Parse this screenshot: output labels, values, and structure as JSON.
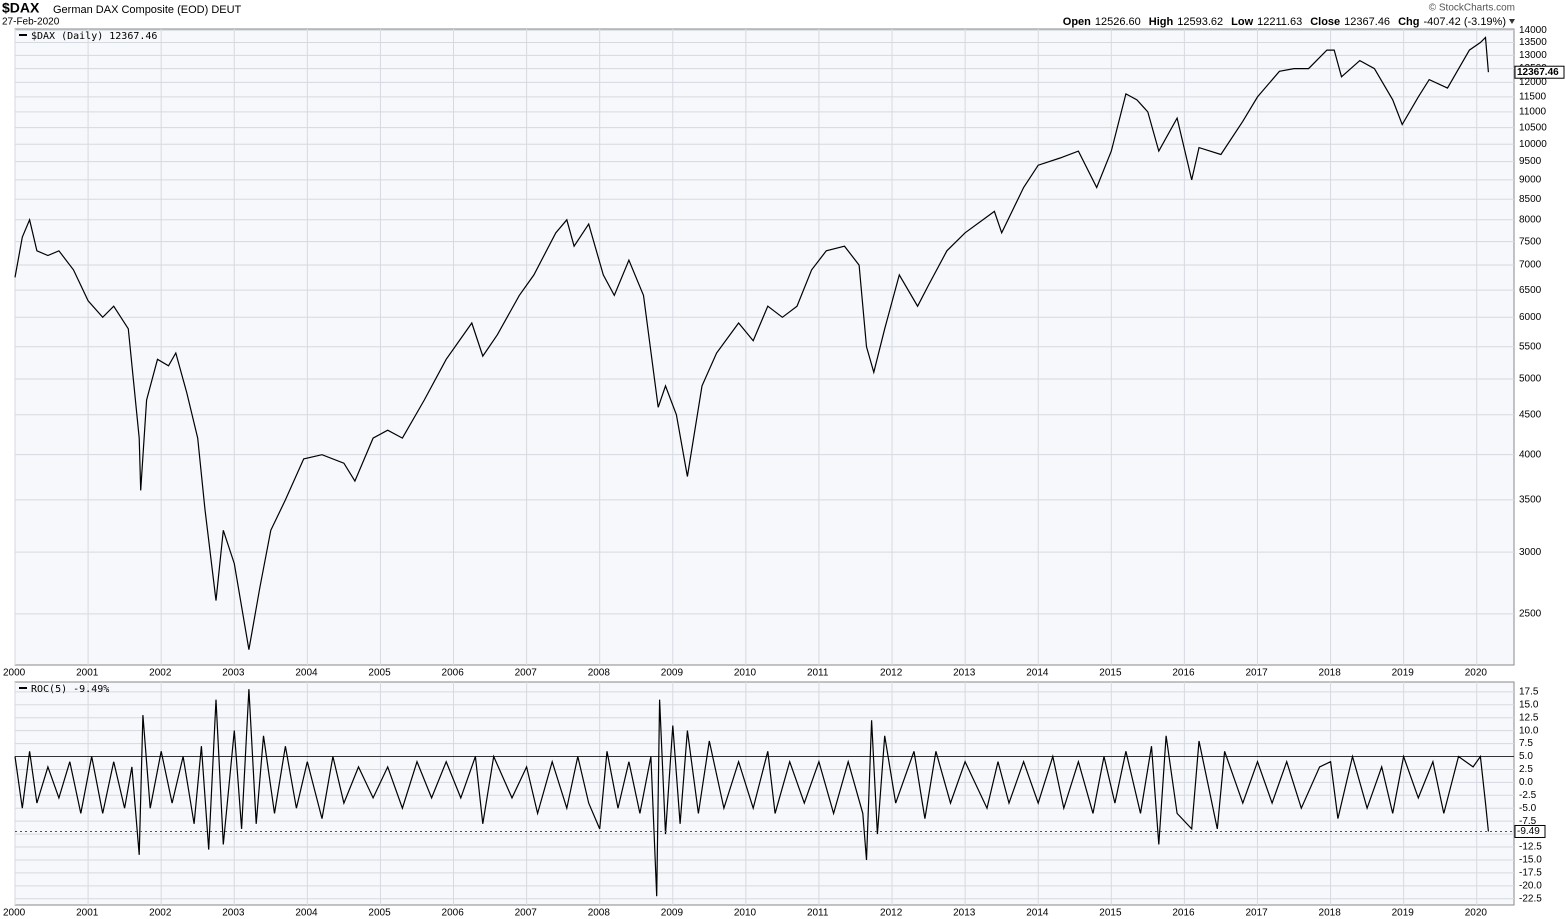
{
  "header": {
    "symbol": "$DAX",
    "name": "German DAX Composite (EOD) DEUT",
    "date": "27-Feb-2020",
    "quote": [
      {
        "label": "Open",
        "value": "12526.60"
      },
      {
        "label": "High",
        "value": "12593.62"
      },
      {
        "label": "Low",
        "value": "12211.63"
      },
      {
        "label": "Close",
        "value": "12367.46"
      },
      {
        "label": "Chg",
        "value": "-407.42 (-3.19%)"
      }
    ],
    "credit": "© StockCharts.com"
  },
  "chart_data": [
    {
      "type": "line",
      "legend": "$DAX (Daily) 12367.46",
      "color": "#000000",
      "log_scale": true,
      "grid": true,
      "x": [
        2000.0,
        2000.1,
        2000.2,
        2000.3,
        2000.45,
        2000.6,
        2000.8,
        2001.0,
        2001.2,
        2001.35,
        2001.55,
        2001.7,
        2001.72,
        2001.8,
        2001.95,
        2002.1,
        2002.2,
        2002.35,
        2002.5,
        2002.6,
        2002.75,
        2002.85,
        2003.0,
        2003.2,
        2003.35,
        2003.5,
        2003.7,
        2003.95,
        2004.2,
        2004.5,
        2004.65,
        2004.9,
        2005.1,
        2005.3,
        2005.6,
        2005.9,
        2006.25,
        2006.4,
        2006.6,
        2006.9,
        2007.1,
        2007.4,
        2007.55,
        2007.65,
        2007.85,
        2008.05,
        2008.2,
        2008.4,
        2008.6,
        2008.8,
        2008.9,
        2009.05,
        2009.2,
        2009.4,
        2009.6,
        2009.9,
        2010.1,
        2010.3,
        2010.5,
        2010.7,
        2010.9,
        2011.1,
        2011.35,
        2011.55,
        2011.65,
        2011.75,
        2011.9,
        2012.1,
        2012.35,
        2012.5,
        2012.75,
        2013.0,
        2013.4,
        2013.5,
        2013.8,
        2014.0,
        2014.3,
        2014.55,
        2014.8,
        2015.0,
        2015.2,
        2015.35,
        2015.5,
        2015.65,
        2015.9,
        2016.1,
        2016.2,
        2016.5,
        2016.8,
        2017.0,
        2017.3,
        2017.5,
        2017.7,
        2017.95,
        2018.05,
        2018.15,
        2018.4,
        2018.6,
        2018.85,
        2018.98,
        2019.2,
        2019.35,
        2019.6,
        2019.9,
        2020.05,
        2020.12,
        2020.16
      ],
      "values": [
        6750,
        7600,
        8000,
        7300,
        7200,
        7300,
        6900,
        6300,
        6000,
        6200,
        5800,
        4200,
        3600,
        4700,
        5300,
        5200,
        5400,
        4800,
        4200,
        3400,
        2600,
        3200,
        2900,
        2250,
        2700,
        3200,
        3500,
        3950,
        4000,
        3900,
        3700,
        4200,
        4300,
        4200,
        4700,
        5300,
        5900,
        5350,
        5700,
        6400,
        6800,
        7700,
        8000,
        7400,
        7900,
        6800,
        6400,
        7100,
        6400,
        4600,
        4900,
        4500,
        3750,
        4900,
        5400,
        5900,
        5600,
        6200,
        6000,
        6200,
        6900,
        7300,
        7400,
        7000,
        5500,
        5100,
        5800,
        6800,
        6200,
        6600,
        7300,
        7700,
        8200,
        7700,
        8800,
        9400,
        9600,
        9800,
        8800,
        9800,
        11600,
        11400,
        11000,
        9800,
        10800,
        9000,
        9900,
        9700,
        10700,
        11500,
        12400,
        12500,
        12500,
        13200,
        13200,
        12200,
        12800,
        12500,
        11400,
        10600,
        11500,
        12100,
        11800,
        13200,
        13500,
        13700,
        12367.46
      ],
      "xlim": [
        2000,
        2020.51
      ],
      "ylim": [
        2150,
        14050
      ],
      "xticks": [
        2000,
        2001,
        2002,
        2003,
        2004,
        2005,
        2006,
        2007,
        2008,
        2009,
        2010,
        2011,
        2012,
        2013,
        2014,
        2015,
        2016,
        2017,
        2018,
        2019,
        2020
      ],
      "yticks": [
        2500,
        3000,
        3500,
        4000,
        4500,
        5000,
        5500,
        6000,
        6500,
        7000,
        7500,
        8000,
        8500,
        9000,
        9500,
        10000,
        10500,
        11000,
        11500,
        12000,
        12500,
        13000,
        13500,
        14000
      ]
    },
    {
      "type": "line",
      "legend": "ROC(5) -9.49%",
      "color": "#000000",
      "grid": true,
      "reference_lines": [
        5
      ],
      "last_value_line": true,
      "x": [
        2000.0,
        2000.1,
        2000.2,
        2000.3,
        2000.45,
        2000.6,
        2000.75,
        2000.9,
        2001.05,
        2001.2,
        2001.35,
        2001.5,
        2001.6,
        2001.7,
        2001.75,
        2001.85,
        2002.0,
        2002.15,
        2002.3,
        2002.45,
        2002.55,
        2002.65,
        2002.75,
        2002.85,
        2003.0,
        2003.1,
        2003.2,
        2003.3,
        2003.4,
        2003.55,
        2003.7,
        2003.85,
        2004.0,
        2004.2,
        2004.35,
        2004.5,
        2004.7,
        2004.9,
        2005.1,
        2005.3,
        2005.5,
        2005.7,
        2005.9,
        2006.1,
        2006.3,
        2006.4,
        2006.55,
        2006.8,
        2007.0,
        2007.15,
        2007.35,
        2007.55,
        2007.7,
        2007.85,
        2008.0,
        2008.1,
        2008.25,
        2008.4,
        2008.55,
        2008.7,
        2008.78,
        2008.82,
        2008.9,
        2009.0,
        2009.1,
        2009.2,
        2009.35,
        2009.5,
        2009.7,
        2009.9,
        2010.1,
        2010.3,
        2010.4,
        2010.6,
        2010.8,
        2011.0,
        2011.2,
        2011.4,
        2011.6,
        2011.65,
        2011.72,
        2011.8,
        2011.9,
        2012.05,
        2012.3,
        2012.45,
        2012.6,
        2012.8,
        2013.0,
        2013.3,
        2013.45,
        2013.6,
        2013.8,
        2014.0,
        2014.2,
        2014.35,
        2014.55,
        2014.75,
        2014.9,
        2015.05,
        2015.2,
        2015.4,
        2015.55,
        2015.65,
        2015.75,
        2015.9,
        2016.1,
        2016.2,
        2016.45,
        2016.55,
        2016.8,
        2017.0,
        2017.2,
        2017.4,
        2017.6,
        2017.85,
        2018.0,
        2018.1,
        2018.3,
        2018.5,
        2018.7,
        2018.85,
        2019.0,
        2019.2,
        2019.4,
        2019.55,
        2019.75,
        2019.95,
        2020.05,
        2020.12,
        2020.16
      ],
      "values": [
        5,
        -5,
        6,
        -4,
        3,
        -3,
        4,
        -6,
        5,
        -6,
        4,
        -5,
        3,
        -14,
        13,
        -5,
        6,
        -4,
        5,
        -8,
        7,
        -13,
        16,
        -12,
        10,
        -9,
        18,
        -8,
        9,
        -6,
        7,
        -5,
        4,
        -7,
        5,
        -4,
        3,
        -3,
        3,
        -5,
        4,
        -3,
        4,
        -3,
        5,
        -8,
        5,
        -3,
        3,
        -6,
        4,
        -5,
        5,
        -4,
        -9,
        6,
        -5,
        4,
        -6,
        5,
        -22,
        16,
        -10,
        11,
        -8,
        10,
        -6,
        8,
        -5,
        4,
        -5,
        6,
        -6,
        4,
        -4,
        4,
        -6,
        4,
        -6,
        -15,
        12,
        -10,
        9,
        -4,
        6,
        -7,
        6,
        -4,
        4,
        -5,
        4,
        -4,
        4,
        -4,
        5,
        -5,
        4,
        -6,
        5,
        -4,
        6,
        -6,
        7,
        -12,
        9,
        -6,
        -9,
        8,
        -9,
        6,
        -4,
        4,
        -4,
        4,
        -5,
        3,
        4,
        -7,
        5,
        -5,
        3,
        -6,
        5,
        -3,
        4,
        -6,
        5,
        3,
        5,
        -4,
        -9.49
      ],
      "xlim": [
        2000,
        2020.51
      ],
      "ylim": [
        -23.7,
        19.4
      ],
      "xticks": [
        2000,
        2001,
        2002,
        2003,
        2004,
        2005,
        2006,
        2007,
        2008,
        2009,
        2010,
        2011,
        2012,
        2013,
        2014,
        2015,
        2016,
        2017,
        2018,
        2019,
        2020
      ],
      "yticks": [
        17.5,
        {
          "value": 15,
          "label": "15.0"
        },
        12.5,
        {
          "value": 10,
          "label": "10.0"
        },
        7.5,
        {
          "value": 5,
          "label": "5.0"
        },
        2.5,
        {
          "value": 0,
          "label": "0.0"
        },
        -2.5,
        {
          "value": -5,
          "label": "-5.0"
        },
        -7.5,
        {
          "value": -10,
          "label": "-10.0"
        },
        -12.5,
        {
          "value": -15,
          "label": "-15.0"
        },
        -17.5,
        {
          "value": -20,
          "label": "-20.0"
        },
        -22.5
      ]
    }
  ]
}
